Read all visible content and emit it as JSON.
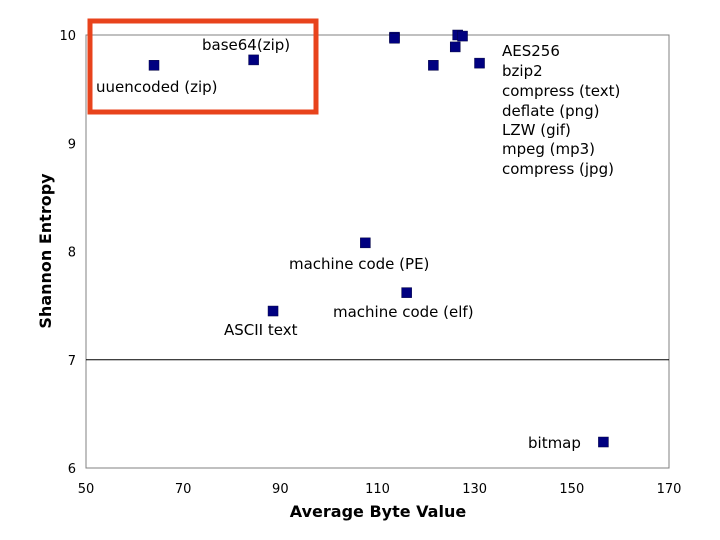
{
  "chart_data": {
    "type": "scatter",
    "title": "",
    "xlabel": "Average Byte Value",
    "ylabel": "Shannon Entropy",
    "xlim": [
      50,
      170
    ],
    "ylim": [
      6,
      10
    ],
    "x_ticks": [
      50,
      70,
      90,
      110,
      130,
      150,
      170
    ],
    "y_ticks": [
      6,
      7,
      8,
      9,
      10
    ],
    "reference_line_y": 7,
    "marker_color": "#000080",
    "highlight_color": "#E8431C",
    "points": [
      {
        "name": "uuencoded (zip)",
        "x": 64,
        "y": 9.72
      },
      {
        "name": "base64(zip)",
        "x": 84.5,
        "y": 9.77
      },
      {
        "name": "AES256",
        "x": 113.5,
        "y": 9.98
      },
      {
        "name": "bzip2",
        "x": 113.5,
        "y": 9.97
      },
      {
        "name": "compress (text)",
        "x": 121.5,
        "y": 9.72
      },
      {
        "name": "deflate (png)",
        "x": 126,
        "y": 9.89
      },
      {
        "name": "LZW (gif)",
        "x": 126.5,
        "y": 10.0
      },
      {
        "name": "mpeg (mp3)",
        "x": 127.5,
        "y": 9.99
      },
      {
        "name": "compress (jpg)",
        "x": 131,
        "y": 9.74
      },
      {
        "name": "machine code (PE)",
        "x": 107.5,
        "y": 8.08
      },
      {
        "name": "machine code (elf)",
        "x": 116,
        "y": 7.62
      },
      {
        "name": "ASCII text",
        "x": 88.5,
        "y": 7.45
      },
      {
        "name": "bitmap",
        "x": 156.5,
        "y": 6.24
      }
    ],
    "labels": {
      "base64": "base64(zip)",
      "uuencoded": "uuencoded (zip)",
      "cluster": [
        "AES256",
        "bzip2",
        "compress (text)",
        "deflate (png)",
        "LZW (gif)",
        "mpeg (mp3)",
        "compress (jpg)"
      ],
      "pe": "machine code (PE)",
      "elf": "machine code (elf)",
      "ascii": "ASCII text",
      "bitmap": "bitmap"
    }
  }
}
